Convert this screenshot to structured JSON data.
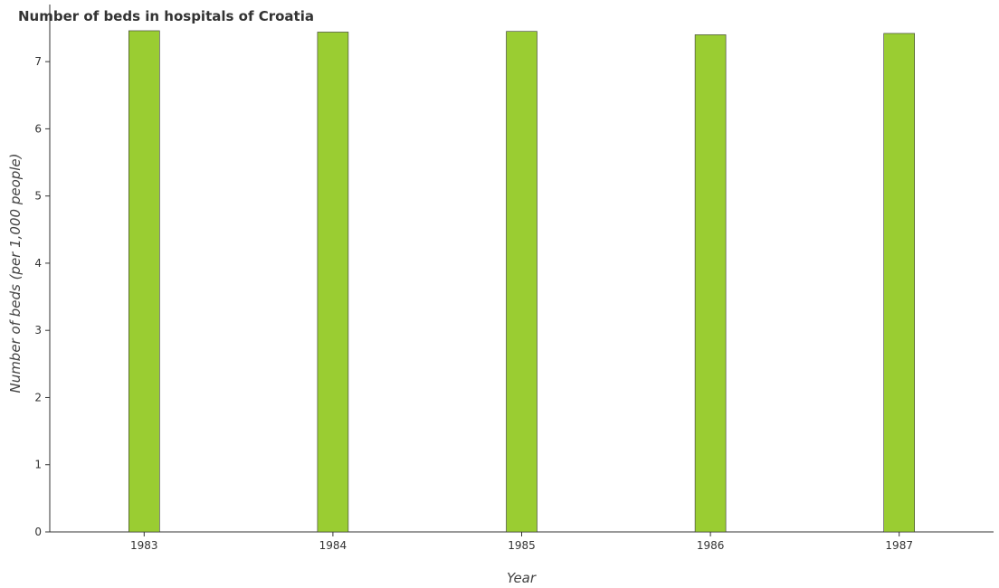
{
  "chart_data": {
    "type": "bar",
    "title": "Number of beds in hospitals of Croatia",
    "xlabel": "Year",
    "ylabel": "Number of beds (per 1,000 people)",
    "categories": [
      "1983",
      "1984",
      "1985",
      "1986",
      "1987"
    ],
    "values": [
      7.46,
      7.44,
      7.45,
      7.4,
      7.42
    ],
    "ylim": [
      0,
      7.85
    ],
    "yticks": [
      "0",
      "1",
      "2",
      "3",
      "4",
      "5",
      "6",
      "7"
    ],
    "grid": false,
    "bar_color": "#9ACD32"
  }
}
